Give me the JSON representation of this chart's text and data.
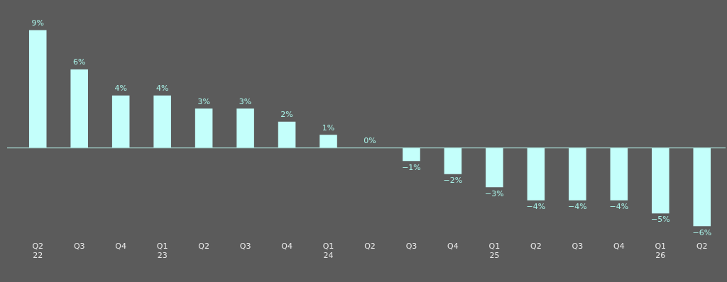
{
  "chart_data": {
    "type": "bar",
    "categories": [
      "Q2\n22",
      "Q3",
      "Q4",
      "Q1\n23",
      "Q2",
      "Q3",
      "Q4",
      "Q1\n24",
      "Q2",
      "Q3",
      "Q4",
      "Q1\n25",
      "Q2",
      "Q3",
      "Q4",
      "Q1\n26",
      "Q2"
    ],
    "values": [
      9,
      6,
      4,
      4,
      3,
      3,
      2,
      1,
      0,
      -1,
      -2,
      -3,
      -4,
      -4,
      -4,
      -5,
      -6
    ],
    "value_labels": [
      "9%",
      "6%",
      "4%",
      "4%",
      "3%",
      "3%",
      "2%",
      "1%",
      "0%",
      "−1%",
      "−2%",
      "−3%",
      "−4%",
      "−4%",
      "−4%",
      "−5%",
      "−6%"
    ],
    "color": "#c4fffb",
    "ref_lines": [
      {
        "axis": "y",
        "value": 0,
        "color": "#a8ddd6"
      }
    ],
    "grid": false,
    "legend": false
  }
}
